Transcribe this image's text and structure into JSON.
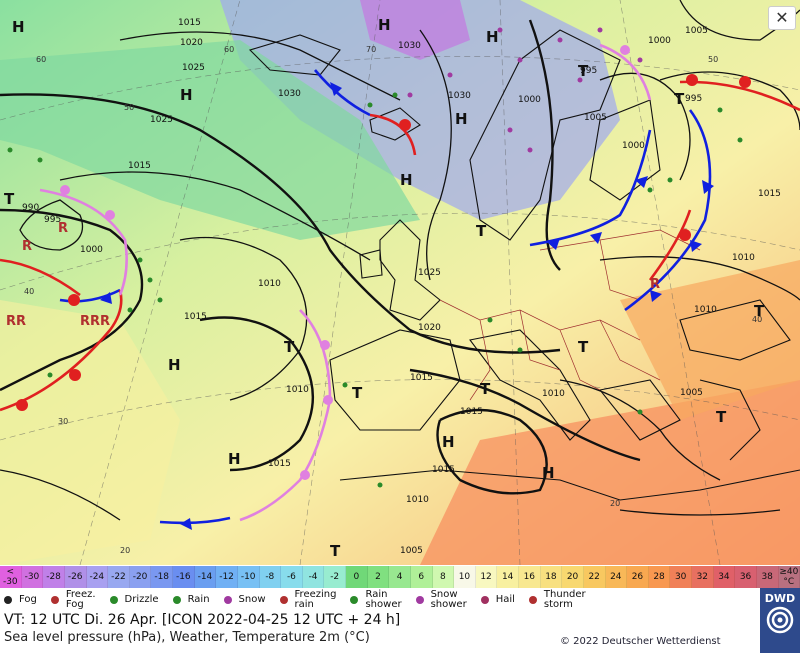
{
  "header": {
    "valid_time": "VT: 12 UTC Di.  26 Apr. [ICON 2022-04-25  12 UTC + 24 h]",
    "subtitle": "Sea level pressure (hPa), Weather, Temperature 2m (°C)",
    "copyright": "© 2022 Deutscher Wetterdienst",
    "logo_text": "DWD",
    "close_glyph": "✕"
  },
  "pressure_labels": [
    "1015",
    "1020",
    "1025",
    "1030",
    "1030",
    "1030",
    "995",
    "1005",
    "1000",
    "1015",
    "1025",
    "990",
    "995",
    "1000",
    "1010",
    "1010",
    "1015",
    "1015",
    "1010",
    "1015",
    "1025",
    "1020",
    "1015",
    "1015",
    "1010",
    "1005",
    "1010",
    "1005",
    "1015",
    "1010",
    "1000",
    "995",
    "1000",
    "1005"
  ],
  "temperature_labels": [
    "60",
    "50",
    "40",
    "30",
    "20",
    "60",
    "70",
    "40",
    "50",
    "20",
    "20"
  ],
  "highs_lows": [
    "H",
    "H",
    "H",
    "H",
    "H",
    "H",
    "H",
    "H",
    "H",
    "H",
    "T",
    "T",
    "T",
    "T",
    "T",
    "T",
    "T",
    "T",
    "T",
    "T",
    "T"
  ],
  "temperature_scale": {
    "labels": [
      "<\n-30",
      "-30",
      "-28",
      "-26",
      "-24",
      "-22",
      "-20",
      "-18",
      "-16",
      "-14",
      "-12",
      "-10",
      "-8",
      "-6",
      "-4",
      "-2",
      "0",
      "2",
      "4",
      "6",
      "8",
      "10",
      "12",
      "14",
      "16",
      "18",
      "20",
      "22",
      "24",
      "26",
      "28",
      "30",
      "32",
      "34",
      "36",
      "38",
      "≥40\n°C"
    ],
    "colors": [
      "#e060e0",
      "#d070e0",
      "#c080e8",
      "#b090e8",
      "#a8a0f0",
      "#98a8f0",
      "#8aa0f0",
      "#7a98f0",
      "#6a8ef0",
      "#6a9ef0",
      "#70b0f4",
      "#78c0f4",
      "#80d0f0",
      "#88dcec",
      "#90e4e0",
      "#98ecd0",
      "#70d878",
      "#80e080",
      "#98e890",
      "#b0f098",
      "#d0f8b0",
      "#f8f8e8",
      "#f8f8c0",
      "#f8f0a0",
      "#f8e890",
      "#f8e080",
      "#f8d870",
      "#f8c860",
      "#f8b858",
      "#f8a850",
      "#f89850",
      "#f08058",
      "#e87060",
      "#e06068",
      "#d86070",
      "#c86878",
      "#b87080"
    ]
  },
  "legend": [
    {
      "icon": "fog-icon",
      "label": "Fog",
      "color": "#222222"
    },
    {
      "icon": "freezing-fog-icon",
      "label": "Freez.\nFog",
      "color": "#b03030"
    },
    {
      "icon": "drizzle-icon",
      "label": "Drizzle",
      "color": "#2a8a2a"
    },
    {
      "icon": "rain-icon",
      "label": "Rain",
      "color": "#2a8a2a"
    },
    {
      "icon": "snow-icon",
      "label": "Snow",
      "color": "#a03aa0"
    },
    {
      "icon": "freezing-rain-icon",
      "label": "Freezing\nrain",
      "color": "#b03030"
    },
    {
      "icon": "rain-shower-icon",
      "label": "Rain\nshower",
      "color": "#2a8a2a"
    },
    {
      "icon": "snow-shower-icon",
      "label": "Snow\nshower",
      "color": "#a03aa0"
    },
    {
      "icon": "hail-icon",
      "label": "Hail",
      "color": "#a03060"
    },
    {
      "icon": "thunderstorm-icon",
      "label": "Thunder\nstorm",
      "color": "#b03030"
    }
  ],
  "colors": {
    "warm_front": "#e02020",
    "cold_front": "#1020e0",
    "occluded_front": "#e080e0",
    "sea_cold": "#60d0a0",
    "land_warm": "#f8e890",
    "isobar": "#111111",
    "logo_bg": "#2e4a8c"
  }
}
